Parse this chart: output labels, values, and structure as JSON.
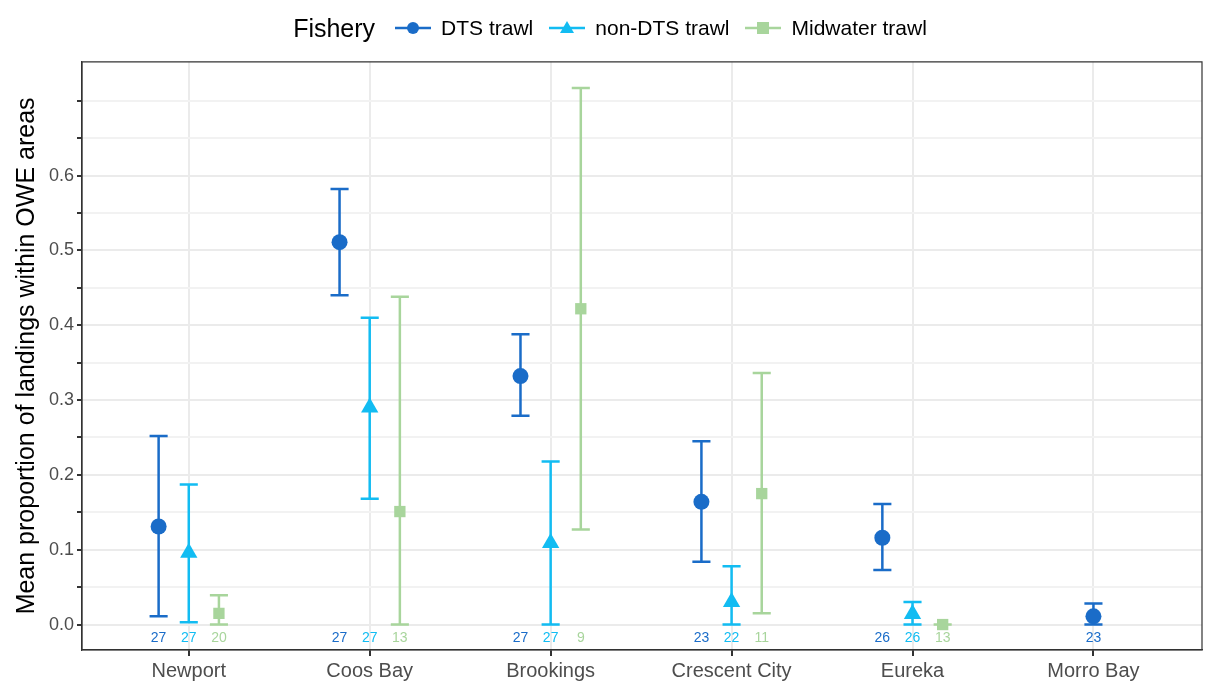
{
  "chart_data": {
    "type": "scatter",
    "ylabel": "Mean proportion of landings within OWE areas",
    "legend_title": "Fishery",
    "legend": "top",
    "grid": true,
    "categories": [
      "Newport",
      "Coos Bay",
      "Brookings",
      "Crescent City",
      "Eureka",
      "Morro Bay"
    ],
    "ylim": [
      -0.034,
      0.752
    ],
    "yticks": [
      {
        "value": 0,
        "label": "0.0"
      },
      {
        "value": 0.05,
        "label": null
      },
      {
        "value": 0.1,
        "label": "0.1"
      },
      {
        "value": 0.15,
        "label": null
      },
      {
        "value": 0.2,
        "label": "0.2"
      },
      {
        "value": 0.25,
        "label": null
      },
      {
        "value": 0.3,
        "label": "0.3"
      },
      {
        "value": 0.35,
        "label": null
      },
      {
        "value": 0.4,
        "label": "0.4"
      },
      {
        "value": 0.45,
        "label": null
      },
      {
        "value": 0.5,
        "label": "0.5"
      },
      {
        "value": 0.55,
        "label": null
      },
      {
        "value": 0.6,
        "label": "0.6"
      },
      {
        "value": 0.65,
        "label": null
      },
      {
        "value": 0.7,
        "label": null
      }
    ],
    "series": [
      {
        "name": "DTS trawl",
        "color": "#1a6cc8",
        "marker": "circle",
        "values": [
          0.131,
          0.511,
          0.332,
          0.164,
          0.116,
          0.011
        ],
        "errors": [
          [
            0.011,
            0.252
          ],
          [
            0.44,
            0.582
          ],
          [
            0.279,
            0.388
          ],
          [
            0.084,
            0.245
          ],
          [
            0.073,
            0.161
          ],
          [
            0,
            0.028
          ]
        ]
      },
      {
        "name": "non-DTS trawl",
        "color": "#12bcf2",
        "marker": "triangle",
        "values": [
          0.096,
          0.29,
          0.109,
          0.03,
          0.014,
          null
        ],
        "errors": [
          [
            0.003,
            0.187
          ],
          [
            0.168,
            0.41
          ],
          [
            0,
            0.218
          ],
          [
            0,
            0.078
          ],
          [
            0,
            0.03
          ],
          null
        ]
      },
      {
        "name": "Midwater trawl",
        "color": "#a8d59c",
        "marker": "square",
        "values": [
          0.015,
          0.151,
          0.422,
          0.175,
          0,
          null
        ],
        "errors": [
          [
            0,
            0.039
          ],
          [
            0,
            0.438
          ],
          [
            0.127,
            0.717
          ],
          [
            0.015,
            0.336
          ],
          [
            0,
            0
          ],
          null
        ]
      }
    ],
    "annotations": [
      "27",
      "27",
      "20",
      "27",
      "27",
      "13",
      "27",
      "27",
      "9",
      "23",
      "22",
      "11",
      "26",
      "26",
      "13",
      "23"
    ]
  }
}
